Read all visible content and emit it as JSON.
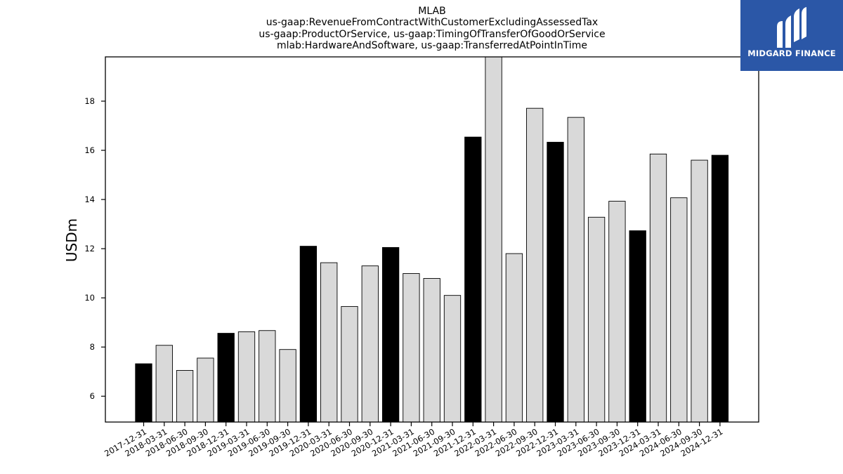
{
  "chart_data": {
    "type": "bar",
    "title_lines": [
      "MLAB",
      "us-gaap:RevenueFromContractWithCustomerExcludingAssessedTax",
      "us-gaap:ProductOrService, us-gaap:TimingOfTransferOfGoodOrService",
      "mlab:HardwareAndSoftware, us-gaap:TransferredAtPointInTime"
    ],
    "ylabel": "USDm",
    "xlabel": "",
    "ylim": [
      4.95,
      19.8
    ],
    "yticks": [
      6,
      8,
      10,
      12,
      14,
      16,
      18
    ],
    "grid": false,
    "categories": [
      "2017-12-31",
      "2018-03-31",
      "2018-06-30",
      "2018-09-30",
      "2018-12-31",
      "2019-03-31",
      "2019-06-30",
      "2019-09-30",
      "2019-12-31",
      "2020-03-31",
      "2020-06-30",
      "2020-09-30",
      "2020-12-31",
      "2021-03-31",
      "2021-06-30",
      "2021-09-30",
      "2021-12-31",
      "2022-03-31",
      "2022-06-30",
      "2022-09-30",
      "2022-12-31",
      "2023-03-31",
      "2023-06-30",
      "2023-09-30",
      "2023-12-31",
      "2024-03-31",
      "2024-06-30",
      "2024-09-30",
      "2024-12-31"
    ],
    "values": [
      7.32,
      8.07,
      7.05,
      7.55,
      8.56,
      8.62,
      8.67,
      7.9,
      12.1,
      11.43,
      9.65,
      11.3,
      12.05,
      10.99,
      10.79,
      10.1,
      16.54,
      19.85,
      11.8,
      17.71,
      16.33,
      17.34,
      13.28,
      13.93,
      12.73,
      15.85,
      14.07,
      15.6,
      15.8
    ],
    "highlight": [
      true,
      false,
      false,
      false,
      true,
      false,
      false,
      false,
      true,
      false,
      false,
      false,
      true,
      false,
      false,
      false,
      true,
      false,
      false,
      false,
      true,
      false,
      false,
      false,
      true,
      false,
      false,
      false,
      true
    ],
    "colors": {
      "highlight": "#000000",
      "normal": "#d9d9d9",
      "edge": "#000000"
    }
  },
  "logo": {
    "text": "MIDGARD FINANCE",
    "background": "#2b57a7"
  }
}
